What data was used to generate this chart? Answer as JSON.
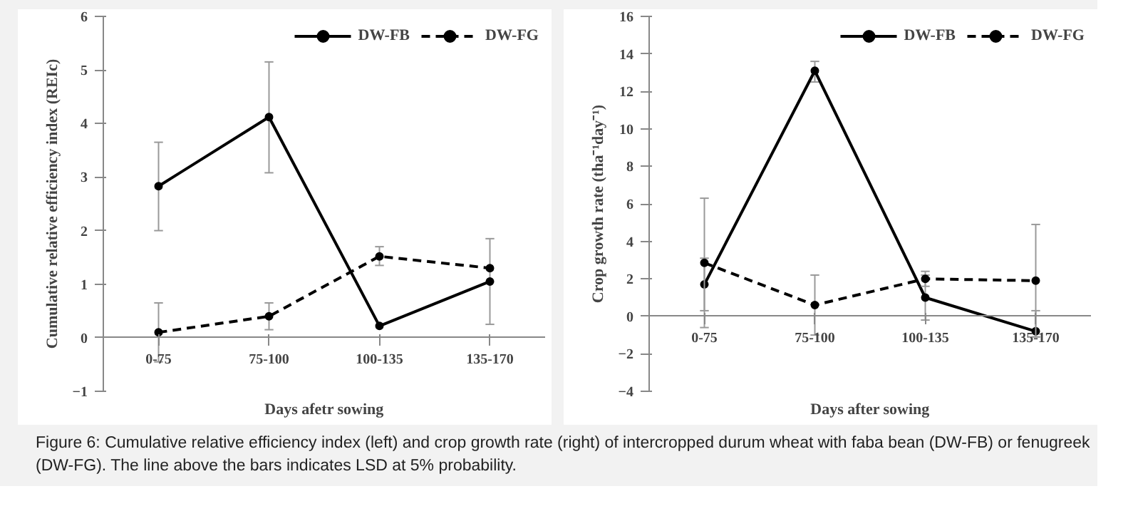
{
  "chart_data": [
    {
      "type": "line",
      "categories": [
        "0-75",
        "75-100",
        "100-135",
        "135-170"
      ],
      "xlabel": "Days afetr sowing",
      "ylabel": "Cumulative relative efficiency index (REIc)",
      "ylim": [
        -1,
        6
      ],
      "yticks": [
        -1,
        0,
        1,
        2,
        3,
        4,
        5,
        6
      ],
      "grid": false,
      "legend": "top right",
      "marker": "circle",
      "series": [
        {
          "name": "DW-FB",
          "color": "#000000",
          "line_style": "solid",
          "values": [
            2.83,
            4.12,
            0.22,
            1.05
          ],
          "errors": [
            [
              2.0,
              3.65
            ],
            [
              3.08,
              5.15
            ],
            null,
            [
              0.25,
              1.85
            ]
          ]
        },
        {
          "name": "DW-FG",
          "color": "#000000",
          "line_style": "dashed",
          "values": [
            0.1,
            0.4,
            1.52,
            1.3
          ],
          "errors": [
            [
              -0.45,
              0.65
            ],
            [
              0.15,
              0.65
            ],
            [
              1.35,
              1.7
            ],
            null
          ]
        }
      ]
    },
    {
      "type": "line",
      "categories": [
        "0-75",
        "75-100",
        "100-135",
        "135-170"
      ],
      "xlabel": "Days after sowing",
      "ylabel": "Crop growth rate (tha⁻¹day⁻¹)",
      "ylim": [
        -4,
        16
      ],
      "yticks": [
        -4,
        -2,
        0,
        2,
        4,
        6,
        8,
        10,
        12,
        14,
        16
      ],
      "grid": false,
      "legend": "top right",
      "marker": "circle",
      "annotations": [
        "Figure 6: Cumulative relative efficiency index (left) and crop growth rate (right) of intercropped durum wheat with faba bean (DW-FB) or fenugreek (DW-FG). The line above the bars indicates LSD at 5% probability."
      ],
      "series": [
        {
          "name": "DW-FB",
          "color": "#000000",
          "line_style": "solid",
          "values": [
            1.7,
            13.1,
            1.0,
            -0.8
          ],
          "errors": [
            [
              0.3,
              3.1
            ],
            [
              12.5,
              13.6
            ],
            [
              -0.2,
              2.2
            ],
            [
              -1.1,
              0.3
            ]
          ]
        },
        {
          "name": "DW-FG",
          "color": "#000000",
          "line_style": "dashed",
          "values": [
            2.85,
            0.6,
            2.0,
            1.9
          ],
          "errors": [
            [
              -0.6,
              6.3
            ],
            [
              -1.0,
              2.2
            ],
            [
              1.6,
              2.4
            ],
            [
              -1.1,
              4.9
            ]
          ]
        }
      ]
    }
  ]
}
